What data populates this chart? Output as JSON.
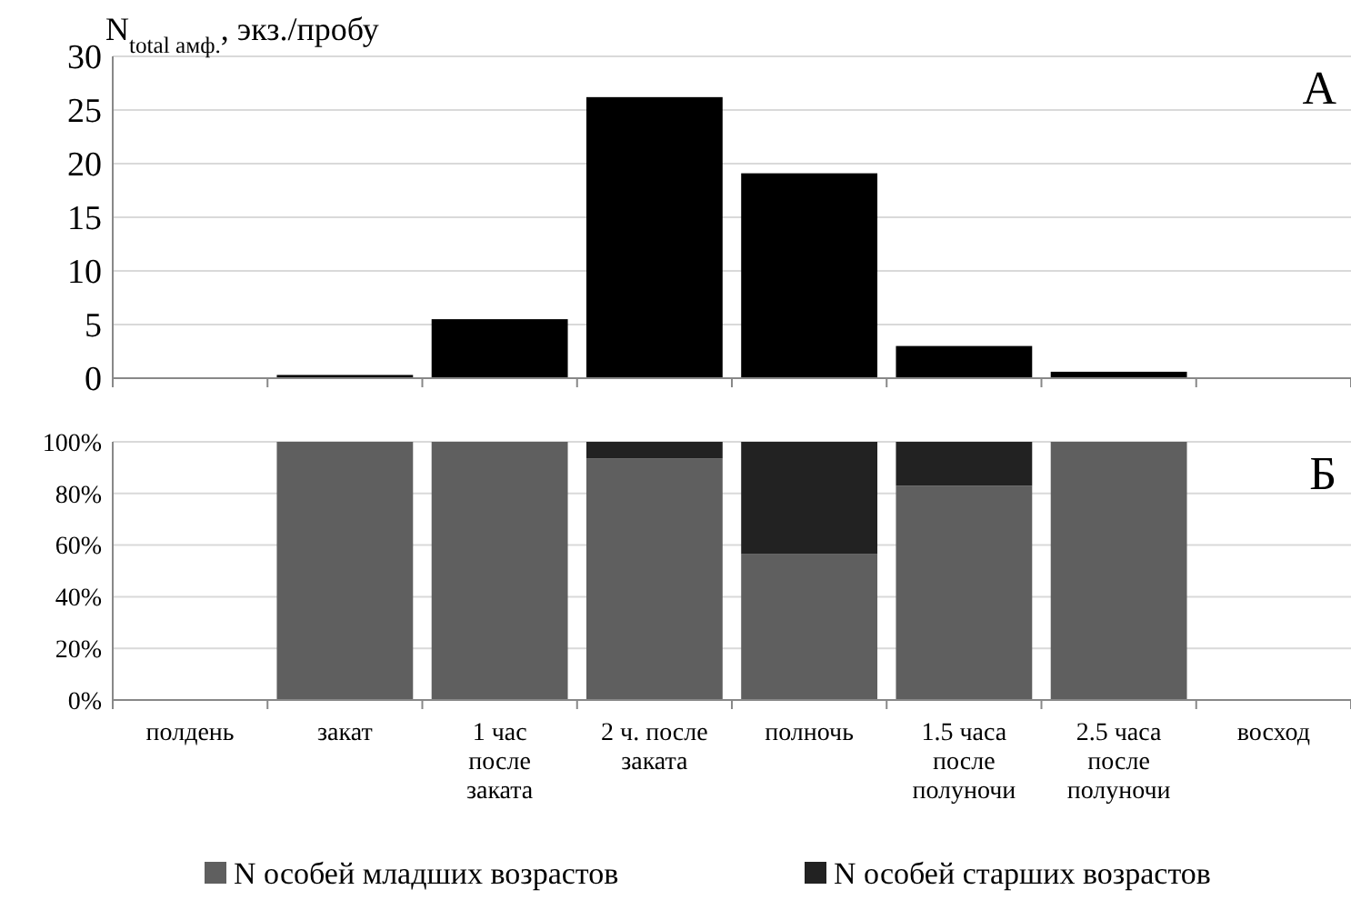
{
  "chart_data": [
    {
      "type": "bar",
      "ylabel": "N$_{total амф.}$, экз./пробу",
      "annotations": [
        "А"
      ],
      "categories": [
        null,
        null,
        null,
        null,
        null,
        null,
        null,
        null
      ],
      "values": [
        0,
        0.3,
        5.5,
        26.2,
        19.1,
        3.0,
        0.6,
        0
      ],
      "color": "#000000",
      "ylim": [
        0,
        30
      ],
      "yticks": [
        0,
        5,
        10,
        15,
        20,
        25,
        30
      ],
      "grid": "y",
      "tick_labels": "y"
    },
    {
      "type": "bar",
      "stacked": true,
      "annotations": [
        "Б"
      ],
      "categories": [
        "полдень",
        "закат",
        "1 час после заката",
        "2 ч. после заката",
        "полночь",
        "1.5 часа после полуночи",
        "2.5 часа после полуночи",
        "восход"
      ],
      "series": [
        {
          "name": "N особей младших возрастов",
          "color": "#5f5f5f",
          "values": [
            null,
            100,
            100,
            93.5,
            56.5,
            83,
            100,
            null
          ]
        },
        {
          "name": "N особей старших возрастов",
          "color": "#222222",
          "values": [
            null,
            0,
            0,
            6.5,
            43.5,
            17,
            0,
            null
          ]
        }
      ],
      "ylim": [
        0,
        100
      ],
      "yticks": [
        {
          "value": 0,
          "label": "0%"
        },
        {
          "value": 20,
          "label": "20%"
        },
        {
          "value": 40,
          "label": "40%"
        },
        {
          "value": 60,
          "label": "60%"
        },
        {
          "value": 80,
          "label": "80%"
        },
        {
          "value": 100,
          "label": "100%"
        }
      ],
      "grid": "y",
      "legend": "bottom"
    }
  ]
}
